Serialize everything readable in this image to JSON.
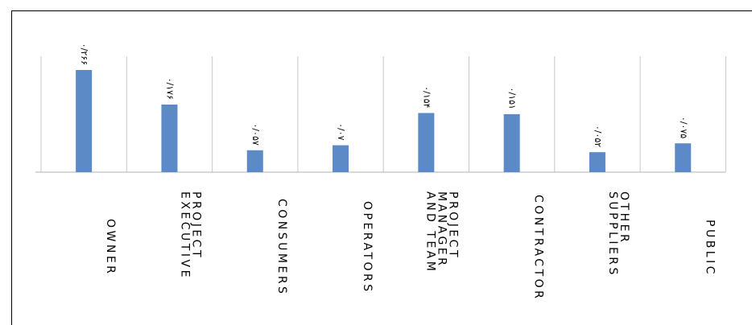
{
  "chart_data": {
    "type": "bar",
    "categories": [
      "OWNER",
      "PROJECT EXECUTIVE",
      "CONSUMERS",
      "OPERATORS",
      "PROJECT MANAGER AND TEAM",
      "CONTRACTOR",
      "OTHER SUPPLIERS",
      "PUBLIC"
    ],
    "values": [
      0.266,
      0.176,
      0.057,
      0.07,
      0.154,
      0.151,
      0.052,
      0.075
    ],
    "value_labels": [
      "۰/۲۶۶",
      "۰/۱۷۶",
      "۰/۰۵۷",
      "۰/۰۷",
      "۰/۱۵۴",
      "۰/۱۵۱",
      "۰/۰۵۲",
      "۰/۰۷۵"
    ],
    "color": "#5b8ac6"
  }
}
